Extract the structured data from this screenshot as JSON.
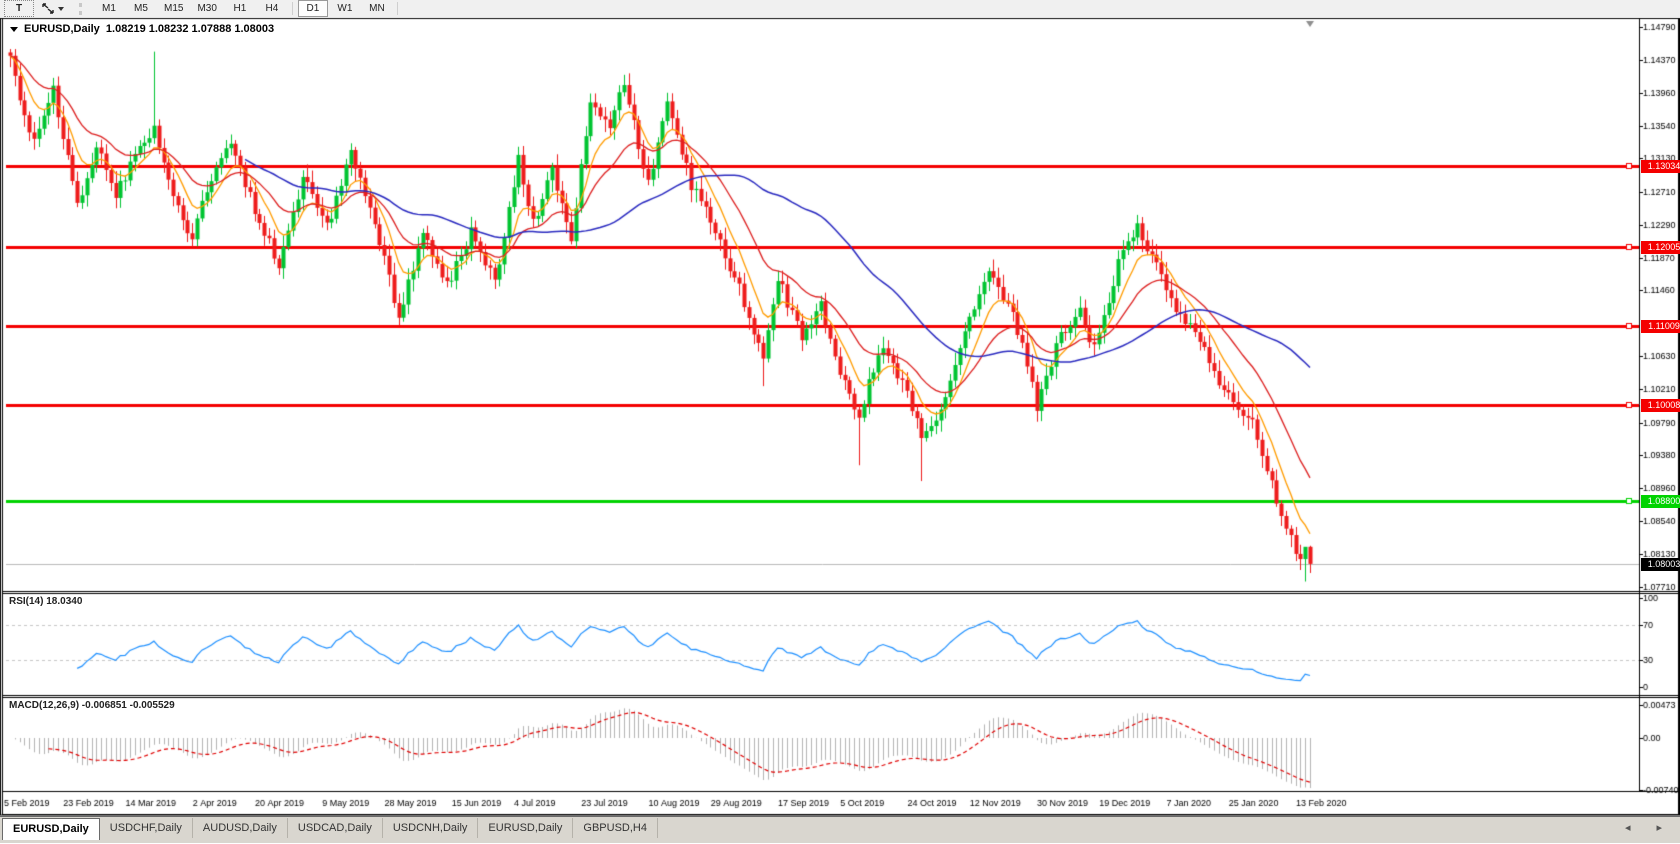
{
  "toolbar": {
    "text_tool_label": "T",
    "timeframes": [
      "M1",
      "M5",
      "M15",
      "M30",
      "H1",
      "H4",
      "D1",
      "W1",
      "MN"
    ],
    "active_timeframe": "D1"
  },
  "chart": {
    "title_symbol": "EURUSD,Daily",
    "ohlc_text": "1.08219 1.08232 1.07888 1.08003",
    "current_price": "1.08003"
  },
  "price_axis": {
    "ticks": [
      "1.14790",
      "1.14370",
      "1.13960",
      "1.13540",
      "1.13130",
      "1.12710",
      "1.12290",
      "1.11870",
      "1.11460",
      "1.10630",
      "1.10210",
      "1.09790",
      "1.09380",
      "1.08960",
      "1.08540",
      "1.08130",
      "1.07710"
    ],
    "range_top": 1.1488,
    "range_bottom": 1.0766
  },
  "levels": [
    {
      "label": "1.13034",
      "price": 1.13034,
      "color": "#f40000",
      "type": "resistance"
    },
    {
      "label": "1.12005",
      "price": 1.12005,
      "color": "#f40000",
      "type": "resistance"
    },
    {
      "label": "1.11009",
      "price": 1.11009,
      "color": "#f40000",
      "type": "resistance"
    },
    {
      "label": "1.10008",
      "price": 1.10008,
      "color": "#f40000",
      "type": "resistance"
    },
    {
      "label": "1.08800",
      "price": 1.088,
      "color": "#00d300",
      "type": "support"
    }
  ],
  "rsi_pane": {
    "label": "RSI(14) 18.0340",
    "ticks": [
      {
        "v": 100,
        "t": "100"
      },
      {
        "v": 70,
        "t": "70"
      },
      {
        "v": 30,
        "t": "30"
      },
      {
        "v": 0,
        "t": "0"
      }
    ],
    "dashed_levels": [
      70,
      30
    ],
    "value": 18.034
  },
  "macd_pane": {
    "label": "MACD(12,26,9) -0.006851 -0.005529",
    "ticks": [
      {
        "v": 0.00473,
        "t": "0.00473"
      },
      {
        "v": 0,
        "t": "0.00"
      },
      {
        "v": -0.0074,
        "t": "-0.00740"
      }
    ],
    "main_value": -0.006851,
    "signal_value": -0.005529
  },
  "date_axis": [
    "5 Feb 2019",
    "23 Feb 2019",
    "14 Mar 2019",
    "2 Apr 2019",
    "20 Apr 2019",
    "9 May 2019",
    "28 May 2019",
    "15 Jun 2019",
    "4 Jul 2019",
    "23 Jul 2019",
    "10 Aug 2019",
    "29 Aug 2019",
    "17 Sep 2019",
    "5 Oct 2019",
    "24 Oct 2019",
    "12 Nov 2019",
    "30 Nov 2019",
    "19 Dec 2019",
    "7 Jan 2020",
    "25 Jan 2020",
    "13 Feb 2020"
  ],
  "tabs": [
    {
      "label": "EURUSD,Daily",
      "active": true
    },
    {
      "label": "USDCHF,Daily",
      "active": false
    },
    {
      "label": "AUDUSD,Daily",
      "active": false
    },
    {
      "label": "USDCAD,Daily",
      "active": false
    },
    {
      "label": "USDCNH,Daily",
      "active": false
    },
    {
      "label": "EURUSD,Daily",
      "active": false
    },
    {
      "label": "GBPUSD,H4",
      "active": false
    }
  ],
  "tab_scroll": {
    "left": "◂",
    "right": "▸"
  },
  "colors": {
    "bull": "#00c431",
    "bear": "#ee1c1c",
    "ma_fast": "#ff9c00",
    "ma_mid": "#dd2020",
    "ma_slow": "#2a2ac0",
    "resistance": "#f40000",
    "support": "#00d300",
    "rsi_line": "#1e90ff",
    "macd_hist": "#b4b4b4",
    "macd_signal": "#e00000",
    "dashed": "#c6c6c6",
    "axis": "#000000",
    "cur_price_bg": "#000000",
    "cur_price_line": "#b9b9b9",
    "shift_marker": "#8f8f8f"
  },
  "chart_data": {
    "type": "candlestick",
    "symbol": "EURUSD",
    "timeframe": "Daily",
    "bars": 272,
    "price_range": [
      1.0766,
      1.1488
    ],
    "close_anchors": [
      [
        0,
        1.1435
      ],
      [
        5,
        1.133
      ],
      [
        9,
        1.14
      ],
      [
        14,
        1.1255
      ],
      [
        18,
        1.133
      ],
      [
        22,
        1.127
      ],
      [
        30,
        1.1355
      ],
      [
        34,
        1.126
      ],
      [
        38,
        1.1215
      ],
      [
        42,
        1.129
      ],
      [
        46,
        1.133
      ],
      [
        51,
        1.125
      ],
      [
        56,
        1.118
      ],
      [
        61,
        1.129
      ],
      [
        66,
        1.1225
      ],
      [
        71,
        1.132
      ],
      [
        76,
        1.123
      ],
      [
        81,
        1.1115
      ],
      [
        86,
        1.1215
      ],
      [
        91,
        1.115
      ],
      [
        96,
        1.122
      ],
      [
        101,
        1.1155
      ],
      [
        106,
        1.131
      ],
      [
        109,
        1.123
      ],
      [
        113,
        1.13
      ],
      [
        117,
        1.121
      ],
      [
        121,
        1.139
      ],
      [
        125,
        1.1355
      ],
      [
        128,
        1.141
      ],
      [
        133,
        1.128
      ],
      [
        137,
        1.138
      ],
      [
        142,
        1.128
      ],
      [
        147,
        1.122
      ],
      [
        152,
        1.115
      ],
      [
        157,
        1.106
      ],
      [
        160,
        1.116
      ],
      [
        165,
        1.109
      ],
      [
        169,
        1.113
      ],
      [
        173,
        1.104
      ],
      [
        177,
        1.099
      ],
      [
        182,
        1.108
      ],
      [
        186,
        1.103
      ],
      [
        190,
        1.096
      ],
      [
        194,
        1.099
      ],
      [
        199,
        1.11
      ],
      [
        204,
        1.117
      ],
      [
        209,
        1.112
      ],
      [
        214,
        1.1
      ],
      [
        219,
        1.109
      ],
      [
        223,
        1.112
      ],
      [
        226,
        1.107
      ],
      [
        231,
        1.118
      ],
      [
        235,
        1.123
      ],
      [
        240,
        1.116
      ],
      [
        244,
        1.111
      ],
      [
        248,
        1.1085
      ],
      [
        252,
        1.102
      ],
      [
        256,
        1.1
      ],
      [
        259,
        1.098
      ],
      [
        262,
        1.092
      ],
      [
        265,
        1.0865
      ],
      [
        268,
        1.082
      ],
      [
        270,
        1.079
      ],
      [
        271,
        1.08003
      ]
    ],
    "spikes": {
      "30": {
        "high": 1.1448
      },
      "81": {
        "low": 1.1102
      },
      "157": {
        "low": 1.1025
      },
      "177": {
        "low": 1.0925
      },
      "190": {
        "low": 1.0905
      },
      "270": {
        "low": 1.0778
      }
    },
    "last_bar": {
      "open": 1.08219,
      "high": 1.08232,
      "low": 1.07888,
      "close": 1.08003
    },
    "moving_averages": [
      {
        "name": "fast",
        "method": "ema",
        "period": 8
      },
      {
        "name": "mid",
        "method": "ema",
        "period": 20
      },
      {
        "name": "slow",
        "method": "sma",
        "period": 50
      }
    ],
    "horizontal_lines": [
      1.13034,
      1.12005,
      1.11009,
      1.10008,
      1.088
    ],
    "rsi": {
      "period": 14,
      "last": 18.034,
      "overbought": 70,
      "oversold": 30
    },
    "macd": {
      "fast": 12,
      "slow": 26,
      "signal": 9,
      "last_main": -0.006851,
      "last_signal": -0.005529
    }
  }
}
